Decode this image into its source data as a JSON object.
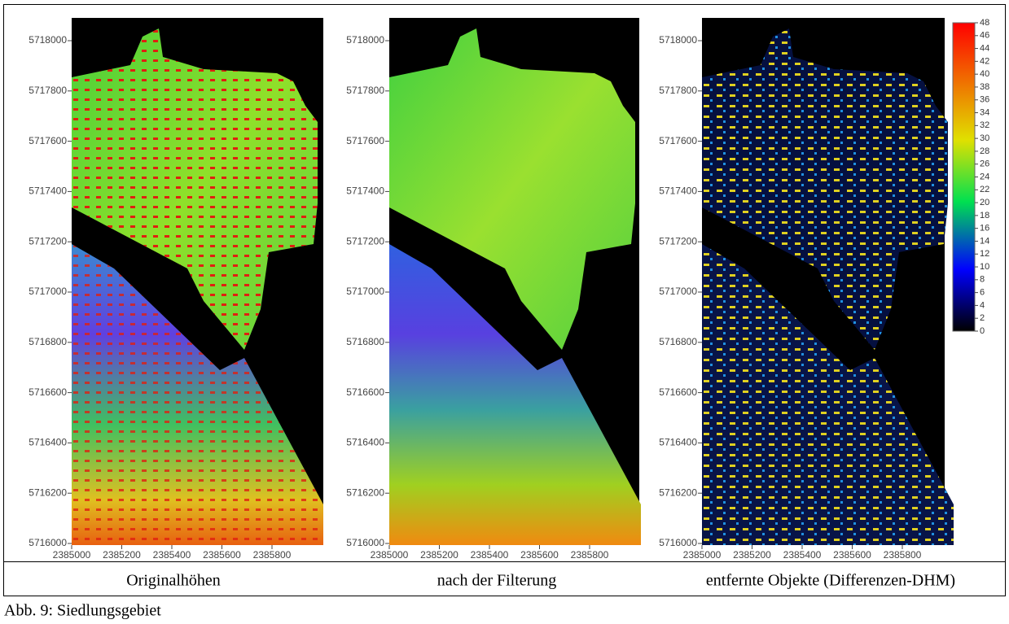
{
  "panels": [
    {
      "caption": "Originalhöhen",
      "yticks": [
        5716000,
        5716200,
        5716400,
        5716600,
        5716800,
        5717000,
        5717200,
        5717400,
        5717600,
        5717800,
        5718000
      ],
      "xticks": [
        2385000,
        2385200,
        2385400,
        2385600,
        2385800
      ]
    },
    {
      "caption": "nach der Filterung",
      "yticks": [
        5716000,
        5716200,
        5716400,
        5716600,
        5716800,
        5717000,
        5717200,
        5717400,
        5717600,
        5717800,
        5718000
      ],
      "xticks": [
        2385000,
        2385200,
        2385400,
        2385600,
        2385800
      ]
    },
    {
      "caption": "entfernte Objekte (Differenzen-DHM)",
      "yticks": [
        5716000,
        5716200,
        5716400,
        5716600,
        5716800,
        5717000,
        5717200,
        5717400,
        5717600,
        5717800,
        5718000
      ],
      "xticks": [
        2385000,
        2385200,
        2385400,
        2385600,
        2385800
      ]
    }
  ],
  "colorbar": {
    "ticks": [
      0,
      2,
      4,
      6,
      8,
      10,
      12,
      14,
      16,
      18,
      20,
      22,
      24,
      26,
      28,
      30,
      32,
      34,
      36,
      38,
      40,
      42,
      44,
      46,
      48
    ]
  },
  "figure_caption": "Abb. 9: Siedlungsgebiet"
}
